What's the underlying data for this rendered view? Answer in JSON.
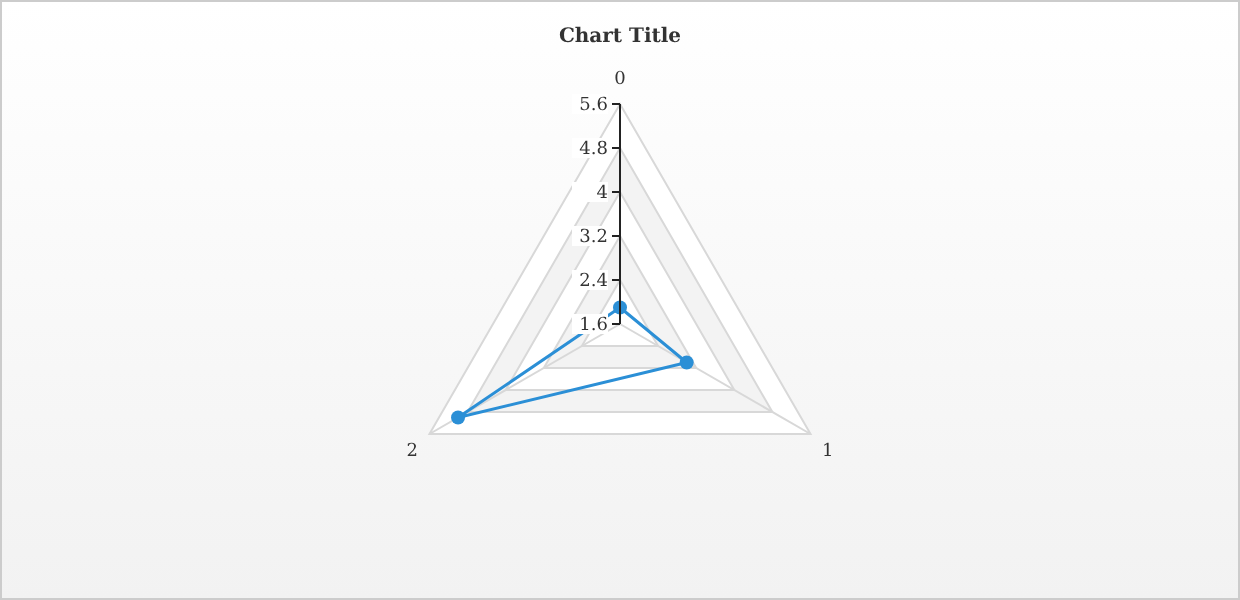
{
  "chart_data": {
    "type": "radar",
    "title": "Chart Title",
    "categories": [
      "0",
      "1",
      "2"
    ],
    "series": [
      {
        "color": "#2b8fd6",
        "values": [
          1.9,
          3.0,
          5.0
        ]
      }
    ],
    "ylim": [
      1.6,
      5.6
    ],
    "yticks": [
      1.6,
      2.4,
      3.2,
      4,
      4.8,
      5.6
    ],
    "grid": true,
    "marker": "circle"
  }
}
